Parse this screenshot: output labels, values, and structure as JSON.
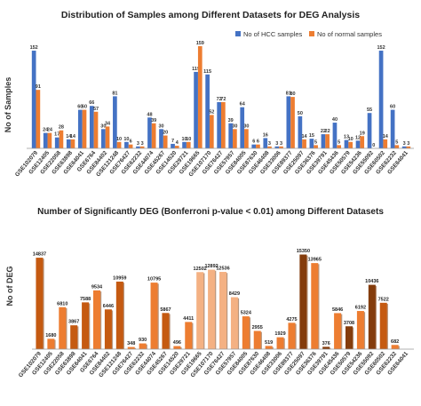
{
  "chart_data": [
    {
      "type": "bar",
      "title": "Distribution of Samples among Different Datasets for DEG Analysis",
      "ylabel": "No of Samples",
      "xlabel": "",
      "ylim": [
        0,
        170
      ],
      "legend_position": "top-right",
      "grid": false,
      "categories": [
        "GSE102079",
        "GSE12405",
        "GSE22058",
        "GSE63898",
        "GSE64041",
        "GSE6764",
        "GSE84402",
        "GSE121248",
        "GSE76427",
        "GSE62232",
        "GSE44074",
        "GSE45267",
        "GSE14520",
        "GSE29721",
        "GSE19665",
        "GSE107170",
        "GSE76427",
        "GSE57957",
        "GSE84005",
        "GSE87630",
        "GSE46408",
        "GSE33006",
        "GSE89377",
        "GSE25097",
        "GSE36376",
        "GSE39791",
        "GSE45436",
        "GSE50579",
        "GSE54236",
        "GSE55092",
        "GSE60502",
        "GSE62232",
        "GSE64041"
      ],
      "series": [
        {
          "name": "No of HCC samples",
          "color": "#4472C4",
          "values": [
            152,
            24,
            17,
            14,
            60,
            66,
            30,
            81,
            10,
            3,
            48,
            30,
            7,
            10,
            119,
            115,
            72,
            39,
            64,
            6,
            16,
            3,
            81,
            50,
            15,
            22,
            40,
            13,
            12,
            55,
            152,
            60,
            3
          ]
        },
        {
          "name": "No of normal samples",
          "color": "#ED7D31",
          "values": [
            91,
            24,
            28,
            14,
            60,
            57,
            34,
            10,
            6,
            3,
            39,
            20,
            4,
            10,
            159,
            52,
            72,
            30,
            30,
            6,
            3,
            3,
            80,
            14,
            5,
            22,
            5,
            10,
            19,
            0,
            14,
            5,
            3
          ]
        }
      ]
    },
    {
      "type": "bar",
      "title": "Number of Significantly DEG (Bonferroni p-value < 0.01) among Different Datasets",
      "ylabel": "No of DEG",
      "xlabel": "",
      "ylim": [
        0,
        16000
      ],
      "grid": false,
      "categories": [
        "GSE102079",
        "GSE12405",
        "GSE22058",
        "GSE63898",
        "GSE64041",
        "GSE6764",
        "GSE84402",
        "GSE121248",
        "GSE76427",
        "GSE62232",
        "GSE44074",
        "GSE45267",
        "GSE14520",
        "GSE29721",
        "GSE19665",
        "GSE107170",
        "GSE76427",
        "GSE57957",
        "GSE84005",
        "GSE87630",
        "GSE46408",
        "GSE33006",
        "GSE89377",
        "GSE25097",
        "GSE36376",
        "GSE39791",
        "GSE45436",
        "GSE50579",
        "GSE54236",
        "GSE55092",
        "GSE60502",
        "GSE62232",
        "GSE64041"
      ],
      "values": [
        14837,
        1680,
        6810,
        3867,
        7588,
        9534,
        6446,
        10959,
        348,
        930,
        10795,
        5867,
        496,
        4411,
        12502,
        12892,
        12536,
        8429,
        5324,
        2955,
        519,
        1929,
        4275,
        15350,
        13965,
        376,
        5846,
        3708,
        6192,
        10436,
        7522,
        682,
        0
      ],
      "colors": [
        "#C55A11",
        "#ED7D31",
        "#ED7D31",
        "#C55A11",
        "#C55A11",
        "#ED7D31",
        "#C55A11",
        "#C55A11",
        "#ED7D31",
        "#ED7D31",
        "#ED7D31",
        "#C55A11",
        "#ED7D31",
        "#ED7D31",
        "#F4B183",
        "#F4B183",
        "#F4B183",
        "#F4B183",
        "#ED7D31",
        "#ED7D31",
        "#ED7D31",
        "#ED7D31",
        "#ED7D31",
        "#843C0C",
        "#ED7D31",
        "#843C0C",
        "#ED7D31",
        "#843C0C",
        "#ED7D31",
        "#843C0C",
        "#C55A11",
        "#ED7D31",
        "#ED7D31"
      ]
    }
  ]
}
